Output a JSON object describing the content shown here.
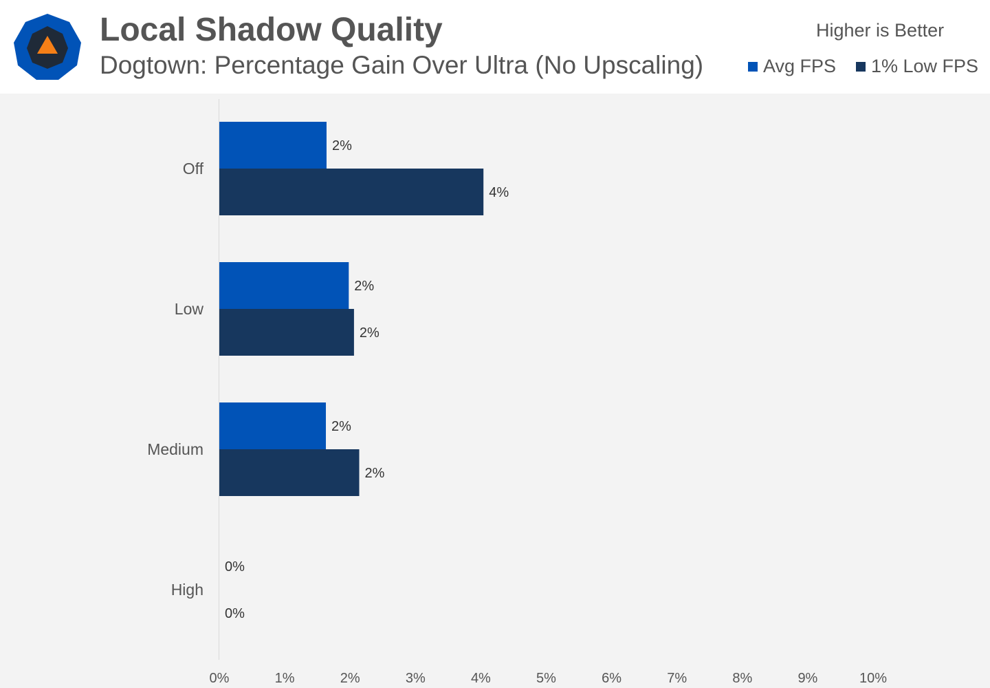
{
  "header": {
    "title": "Local Shadow Quality",
    "subtitle": "Dogtown: Percentage Gain Over Ultra (No Upscaling)",
    "note": "Higher is Better",
    "logo_icon": "techspot-logo-icon"
  },
  "legend": {
    "position": "top-right",
    "items": [
      {
        "label": "Avg FPS",
        "color": "#0153b7"
      },
      {
        "label": "1% Low FPS",
        "color": "#17375e"
      }
    ]
  },
  "chart_data": {
    "type": "bar",
    "orientation": "horizontal",
    "title": "Local Shadow Quality",
    "subtitle": "Dogtown: Percentage Gain Over Ultra (No Upscaling)",
    "categories": [
      "Off",
      "Low",
      "Medium",
      "High"
    ],
    "series": [
      {
        "name": "Avg FPS",
        "color": "#0153b7",
        "values": [
          1.64,
          1.98,
          1.63,
          0
        ],
        "labels": [
          "2%",
          "2%",
          "2%",
          "0%"
        ]
      },
      {
        "name": "1% Low FPS",
        "color": "#17375e",
        "values": [
          4.04,
          2.06,
          2.14,
          0
        ],
        "labels": [
          "4%",
          "2%",
          "2%",
          "0%"
        ]
      }
    ],
    "xlim": [
      0,
      10
    ],
    "x_ticks": [
      "0%",
      "1%",
      "2%",
      "3%",
      "4%",
      "5%",
      "6%",
      "7%",
      "8%",
      "9%",
      "10%"
    ],
    "grid": false,
    "xlabel": "",
    "ylabel": ""
  }
}
